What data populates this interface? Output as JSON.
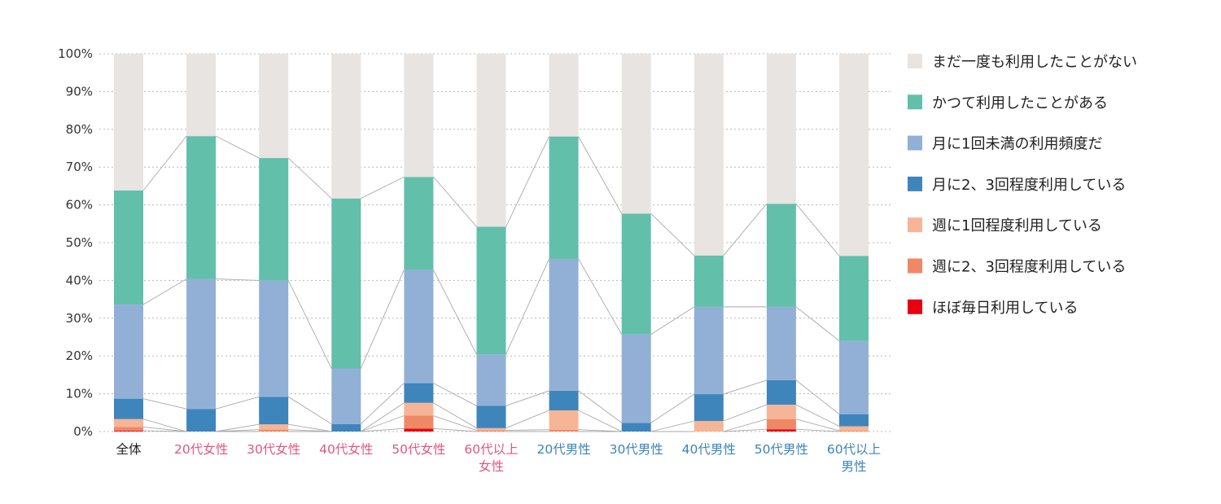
{
  "chart_data": {
    "type": "bar",
    "stacked": true,
    "categories": [
      "全体",
      "20代女性",
      "30代女性",
      "40代女性",
      "50代女性",
      "60代以上女性",
      "20代男性",
      "30代男性",
      "40代男性",
      "50代男性",
      "60代以上男性"
    ],
    "category_lines": [
      [
        "全体"
      ],
      [
        "20代女性"
      ],
      [
        "30代女性"
      ],
      [
        "40代女性"
      ],
      [
        "50代女性"
      ],
      [
        "60代以上",
        "女性"
      ],
      [
        "20代男性"
      ],
      [
        "30代男性"
      ],
      [
        "40代男性"
      ],
      [
        "50代男性"
      ],
      [
        "60代以上",
        "男性"
      ]
    ],
    "category_colors": [
      "#222222",
      "#e0577f",
      "#e0577f",
      "#e0577f",
      "#e0577f",
      "#e0577f",
      "#3d84b8",
      "#3d84b8",
      "#3d84b8",
      "#3d84b8",
      "#3d84b8"
    ],
    "ylim": [
      0,
      100
    ],
    "yticks": [
      "0%",
      "10%",
      "20%",
      "30%",
      "40%",
      "50%",
      "60%",
      "70%",
      "80%",
      "90%",
      "100%"
    ],
    "series": [
      {
        "name": "ほぼ毎日利用している",
        "color": "#e60012",
        "values": [
          0.2,
          0,
          0,
          0,
          0.8,
          0,
          0,
          0,
          0,
          0.6,
          0
        ]
      },
      {
        "name": "週に2、3回程度利用している",
        "color": "#f08866",
        "values": [
          1.0,
          0,
          0.5,
          0,
          3.4,
          0.3,
          0.5,
          0,
          0,
          2.7,
          0.2
        ]
      },
      {
        "name": "週に1回程度利用している",
        "color": "#f6b596",
        "values": [
          2.1,
          0,
          1.4,
          0,
          3.4,
          0.6,
          5.1,
          0,
          2.8,
          3.8,
          1.2
        ]
      },
      {
        "name": "月に2、3回程度利用している",
        "color": "#3e85bc",
        "values": [
          5.4,
          6.0,
          7.3,
          2.0,
          5.2,
          5.9,
          5.2,
          2.3,
          7.1,
          6.5,
          3.2
        ]
      },
      {
        "name": "月に1回未満の利用頻度だ",
        "color": "#92b0d6",
        "values": [
          24.9,
          34.4,
          30.8,
          14.7,
          30.0,
          13.6,
          34.9,
          23.4,
          23.1,
          19.4,
          19.4
        ]
      },
      {
        "name": "かつて利用したことがある",
        "color": "#62bfaa",
        "values": [
          30.2,
          37.8,
          32.4,
          45.0,
          24.6,
          33.8,
          32.4,
          32.0,
          13.6,
          27.3,
          22.5
        ]
      },
      {
        "name": "まだ一度も利用したことがない",
        "color": "#e8e4e1",
        "values": [
          36.2,
          21.8,
          27.6,
          38.3,
          32.6,
          45.8,
          21.9,
          42.3,
          53.4,
          39.7,
          53.5
        ]
      }
    ]
  }
}
